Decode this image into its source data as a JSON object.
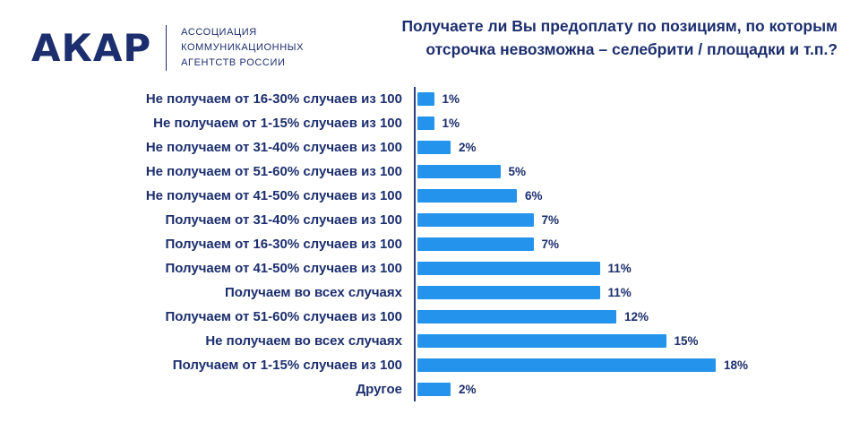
{
  "logo": {
    "acronym": "АКАР",
    "full_name_lines": [
      "АССОЦИАЦИЯ",
      "КОММУНИКАЦИОННЫХ",
      "АГЕНТСТВ РОССИИ"
    ]
  },
  "title": "Получаете ли Вы предоплату по позициям, по которым отсрочка невозможна – селебрити / площадки и т.п.?",
  "colors": {
    "bar": "#2493eb",
    "text": "#1c2e6e",
    "axis": "#2f3f7e"
  },
  "chart_data": {
    "type": "bar",
    "orientation": "horizontal",
    "title": "Получаете ли Вы предоплату по позициям, по которым отсрочка невозможна – селебрити / площадки и т.п.?",
    "xlabel": "",
    "ylabel": "",
    "xlim": [
      0,
      20
    ],
    "grid": false,
    "legend": false,
    "categories": [
      "Не получаем от 16-30% случаев из 100",
      "Не получаем от 1-15% случаев из 100",
      "Не получаем от 31-40% случаев из 100",
      "Не получаем от 51-60% случаев из 100",
      "Не получаем от 41-50% случаев из 100",
      "Получаем от 31-40% случаев из 100",
      "Получаем от 16-30% случаев из 100",
      "Получаем от 41-50% случаев из 100",
      "Получаем во всех случаях",
      "Получаем от 51-60% случаев из 100",
      "Не получаем во всех случаях",
      "Получаем от 1-15% случаев из 100",
      "Другое"
    ],
    "values": [
      1,
      1,
      2,
      5,
      6,
      7,
      7,
      11,
      11,
      12,
      15,
      18,
      2
    ],
    "value_labels": [
      "1%",
      "1%",
      "2%",
      "5%",
      "6%",
      "7%",
      "7%",
      "11%",
      "11%",
      "12%",
      "15%",
      "18%",
      "2%"
    ]
  }
}
